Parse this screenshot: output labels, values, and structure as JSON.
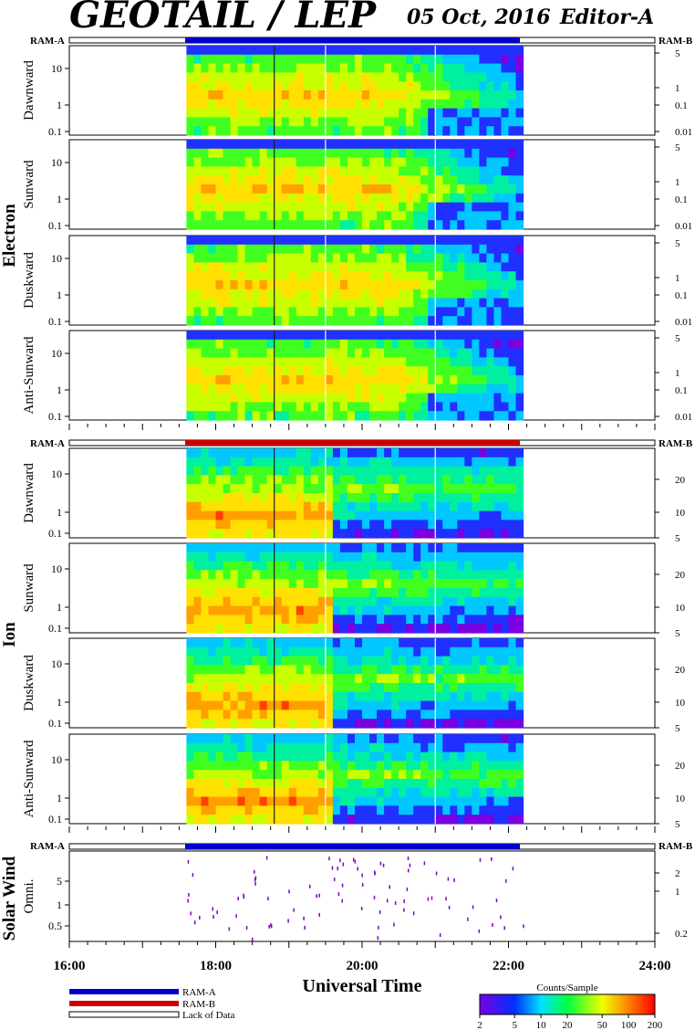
{
  "header": {
    "title": "GEOTAIL / LEP",
    "date": "05 Oct, 2016",
    "editor": "Editor-A"
  },
  "ram_a_label": "RAM-A",
  "ram_b_label": "RAM-B",
  "groups": {
    "electron": "Electron",
    "ion": "Ion",
    "solar_wind": "Solar Wind"
  },
  "panel_labels": {
    "e0": "Dawnward",
    "e1": "Sunward",
    "e2": "Duskward",
    "e3": "Anti-Sunward",
    "i0": "Dawnward",
    "i1": "Sunward",
    "i2": "Duskward",
    "i3": "Anti-Sunward",
    "sw": "Omni."
  },
  "legend": {
    "ram_a": "RAM-A",
    "ram_b": "RAM-B",
    "lack": "Lack of Data",
    "colorbar_title": "Counts/Sample",
    "colorbar_ticks": [
      "2",
      "5",
      "10",
      "20",
      "50",
      "100",
      "200"
    ]
  },
  "colors": {
    "ram_a": "#0000cc",
    "ram_b": "#cc0000"
  },
  "chart_data": {
    "type": "heatmap",
    "xlabel": "Universal Time",
    "x_ticks": [
      "16:00",
      "18:00",
      "20:00",
      "22:00",
      "24:00"
    ],
    "x_range_hours": [
      16,
      24
    ],
    "data_coverage_hours": [
      17.6,
      22.2
    ],
    "electron_left_ticks": [
      "10",
      "1",
      "0.1"
    ],
    "electron_right_ticks": [
      "5",
      "1",
      "0.1",
      "0.01"
    ],
    "ion_left_ticks": [
      "10",
      "1",
      "0.1"
    ],
    "ion_right_ticks": [
      "20",
      "10",
      "5"
    ],
    "sw_left_ticks": [
      "5",
      "1",
      "0.5"
    ],
    "sw_right_ticks": [
      "2",
      "1",
      "0.2"
    ],
    "colorbar_range": [
      2,
      200
    ],
    "colorbar_scale": "log",
    "bar_modes": {
      "electron": "RAM-A",
      "ion": "RAM-B",
      "solar_wind": "RAM-A"
    }
  }
}
